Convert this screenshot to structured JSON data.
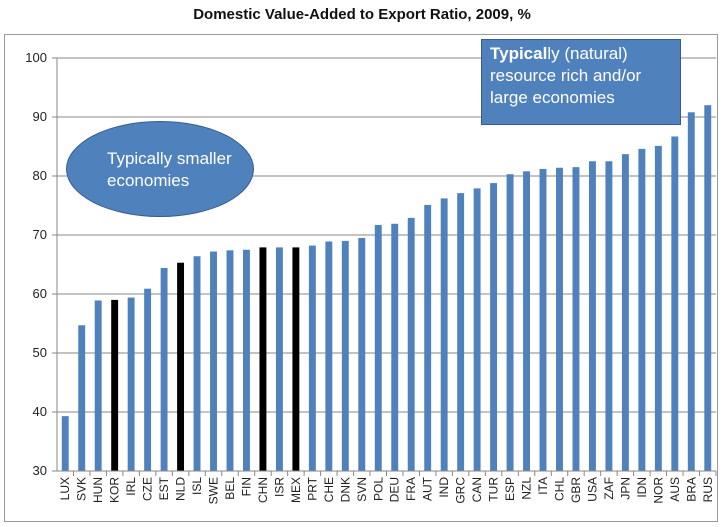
{
  "chart_data": {
    "type": "bar",
    "title": "Domestic Value-Added to Export Ratio, 2009, %",
    "xlabel": "",
    "ylabel": "",
    "ylim": [
      30,
      100
    ],
    "yticks": [
      "30",
      "40",
      "50",
      "60",
      "70",
      "80",
      "90",
      "100"
    ],
    "categories": [
      "LUX",
      "SVK",
      "HUN",
      "KOR",
      "IRL",
      "CZE",
      "EST",
      "NLD",
      "ISL",
      "SWE",
      "BEL",
      "FIN",
      "CHN",
      "ISR",
      "MEX",
      "PRT",
      "CHE",
      "DNK",
      "SVN",
      "POL",
      "DEU",
      "FRA",
      "AUT",
      "IND",
      "GRC",
      "CAN",
      "TUR",
      "ESP",
      "NZL",
      "ITA",
      "CHL",
      "GBR",
      "USA",
      "ZAF",
      "JPN",
      "IDN",
      "NOR",
      "AUS",
      "BRA",
      "RUS"
    ],
    "values": [
      39.3,
      54.7,
      58.9,
      59.0,
      59.4,
      60.9,
      64.4,
      65.3,
      66.4,
      67.2,
      67.4,
      67.5,
      67.9,
      67.9,
      67.9,
      68.2,
      68.9,
      69.0,
      69.5,
      71.7,
      71.9,
      72.9,
      75.1,
      76.2,
      77.1,
      77.9,
      78.8,
      80.3,
      80.8,
      81.2,
      81.4,
      81.5,
      82.5,
      82.5,
      83.7,
      84.6,
      85.1,
      86.7,
      90.8,
      92.0
    ],
    "highlighted": [
      "KOR",
      "NLD",
      "CHN",
      "MEX"
    ],
    "colors": {
      "bar": "#4f81bd",
      "highlight": "#000000",
      "axis": "#878787",
      "grid": "#878787"
    }
  },
  "annotations": {
    "large_economies": {
      "bold": "Typical",
      "rest": "ly (natural) resource rich and/or large economies"
    },
    "small_economies": {
      "text": "Typically smaller economies"
    }
  }
}
